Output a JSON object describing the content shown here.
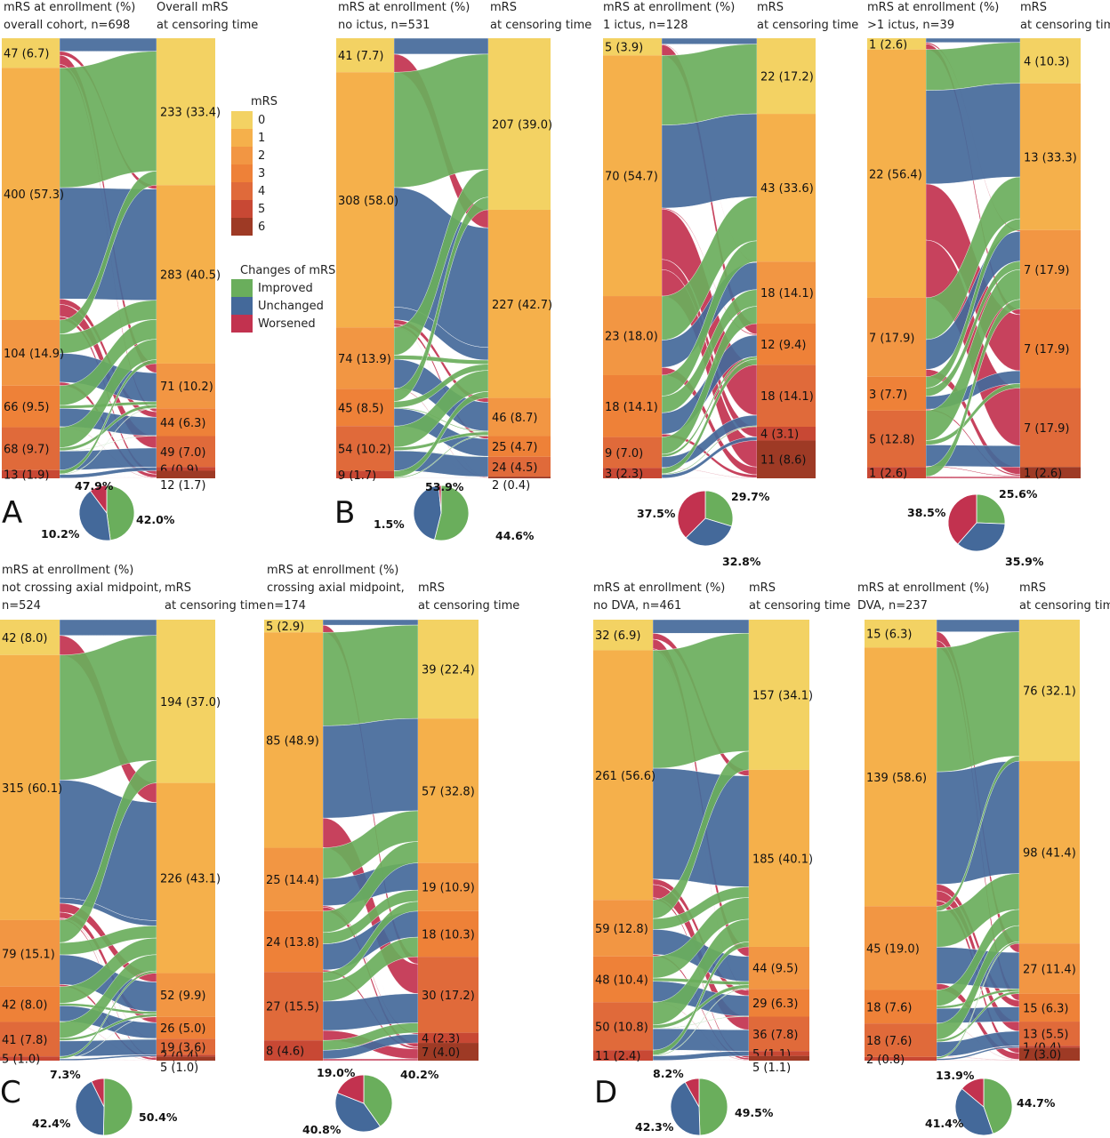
{
  "colors": {
    "mrs": [
      "#F3D263",
      "#F5B04B",
      "#F29643",
      "#EE8138",
      "#E06A3A",
      "#C84834",
      "#9E3A25"
    ],
    "improved": "#6AAE5C",
    "unchanged": "#44699A",
    "worsened": "#C2324F"
  },
  "legend": {
    "mrs_title": "mRS",
    "mrs_levels": [
      "0",
      "1",
      "2",
      "3",
      "4",
      "5",
      "6"
    ],
    "changes_title": "Changes of mRS",
    "changes": [
      "Improved",
      "Unchanged",
      "Worsened"
    ]
  },
  "chart_data": [
    {
      "type": "sankey",
      "panel_letter": "A",
      "header_left": [
        "mRS at enrollment (%)",
        "overall cohort, n=698"
      ],
      "header_right": [
        "Overall mRS",
        "at censoring time"
      ],
      "left": [
        {
          "mrs": 0,
          "label": "47 (6.7)",
          "value": 47
        },
        {
          "mrs": 1,
          "label": "400 (57.3)",
          "value": 400
        },
        {
          "mrs": 2,
          "label": "104 (14.9)",
          "value": 104
        },
        {
          "mrs": 3,
          "label": "66 (9.5)",
          "value": 66
        },
        {
          "mrs": 4,
          "label": "68 (9.7)",
          "value": 68
        },
        {
          "mrs": 5,
          "label": "13 (1.9)",
          "value": 13
        }
      ],
      "right": [
        {
          "mrs": 0,
          "label": "233 (33.4)",
          "value": 233
        },
        {
          "mrs": 1,
          "label": "283 (40.5)",
          "value": 283
        },
        {
          "mrs": 2,
          "label": "71 (10.2)",
          "value": 71
        },
        {
          "mrs": 3,
          "label": "44 (6.3)",
          "value": 44
        },
        {
          "mrs": 4,
          "label": "49 (7.0)",
          "value": 49
        },
        {
          "mrs": 5,
          "label": "6 (0.9)",
          "value": 6
        },
        {
          "mrs": 6,
          "label": "12 (1.7)",
          "value": 12
        }
      ],
      "pie": {
        "improved": 47.9,
        "unchanged": 42.0,
        "worsened": 10.2,
        "labels": {
          "improved": "47.9%",
          "unchanged": "42.0%",
          "worsened": "10.2%"
        }
      }
    },
    {
      "type": "sankey",
      "panel_letter": "B",
      "header_left": [
        "mRS at enrollment (%)",
        "no ictus, n=531"
      ],
      "header_right": [
        "mRS",
        "at censoring time"
      ],
      "left": [
        {
          "mrs": 0,
          "label": "41 (7.7)",
          "value": 41
        },
        {
          "mrs": 1,
          "label": "308 (58.0)",
          "value": 308
        },
        {
          "mrs": 2,
          "label": "74 (13.9)",
          "value": 74
        },
        {
          "mrs": 3,
          "label": "45 (8.5)",
          "value": 45
        },
        {
          "mrs": 4,
          "label": "54 (10.2)",
          "value": 54
        },
        {
          "mrs": 5,
          "label": "9 (1.7)",
          "value": 9
        }
      ],
      "right": [
        {
          "mrs": 0,
          "label": "207 (39.0)",
          "value": 207
        },
        {
          "mrs": 1,
          "label": "227 (42.7)",
          "value": 227
        },
        {
          "mrs": 2,
          "label": "46 (8.7)",
          "value": 46
        },
        {
          "mrs": 3,
          "label": "25 (4.7)",
          "value": 25
        },
        {
          "mrs": 4,
          "label": "24 (4.5)",
          "value": 24
        },
        {
          "mrs": 6,
          "label": "2 (0.4)",
          "value": 2
        }
      ],
      "pie": {
        "improved": 53.9,
        "unchanged": 44.6,
        "worsened": 1.5,
        "labels": {
          "improved": "53.9%",
          "unchanged": "44.6%",
          "worsened": "1.5%"
        }
      }
    },
    {
      "type": "sankey",
      "panel_letter": "",
      "header_left": [
        "mRS at enrollment (%)",
        "1 ictus, n=128"
      ],
      "header_right": [
        "mRS",
        "at censoring time"
      ],
      "left": [
        {
          "mrs": 0,
          "label": "5 (3.9)",
          "value": 5
        },
        {
          "mrs": 1,
          "label": "70 (54.7)",
          "value": 70
        },
        {
          "mrs": 2,
          "label": "23 (18.0)",
          "value": 23
        },
        {
          "mrs": 3,
          "label": "18 (14.1)",
          "value": 18
        },
        {
          "mrs": 4,
          "label": "9 (7.0)",
          "value": 9
        },
        {
          "mrs": 5,
          "label": "3 (2.3)",
          "value": 3
        }
      ],
      "right": [
        {
          "mrs": 0,
          "label": "22 (17.2)",
          "value": 22
        },
        {
          "mrs": 1,
          "label": "43 (33.6)",
          "value": 43
        },
        {
          "mrs": 2,
          "label": "18 (14.1)",
          "value": 18
        },
        {
          "mrs": 3,
          "label": "12 (9.4)",
          "value": 12
        },
        {
          "mrs": 4,
          "label": "18 (14.1)",
          "value": 18
        },
        {
          "mrs": 5,
          "label": "4 (3.1)",
          "value": 4
        },
        {
          "mrs": 6,
          "label": "11 (8.6)",
          "value": 11
        }
      ],
      "pie": {
        "improved": 29.7,
        "unchanged": 32.8,
        "worsened": 37.5,
        "labels": {
          "improved": "29.7%",
          "unchanged": "32.8%",
          "worsened": "37.5%"
        }
      }
    },
    {
      "type": "sankey",
      "panel_letter": "",
      "header_left": [
        "mRS at enrollment (%)",
        ">1 ictus, n=39"
      ],
      "header_right": [
        "mRS",
        "at censoring time"
      ],
      "left": [
        {
          "mrs": 0,
          "label": "1 (2.6)",
          "value": 1
        },
        {
          "mrs": 1,
          "label": "22 (56.4)",
          "value": 22
        },
        {
          "mrs": 2,
          "label": "7 (17.9)",
          "value": 7
        },
        {
          "mrs": 3,
          "label": "3 (7.7)",
          "value": 3
        },
        {
          "mrs": 4,
          "label": "5 (12.8)",
          "value": 5
        },
        {
          "mrs": 5,
          "label": "1 (2.6)",
          "value": 1
        }
      ],
      "right": [
        {
          "mrs": 0,
          "label": "4 (10.3)",
          "value": 4
        },
        {
          "mrs": 1,
          "label": "13 (33.3)",
          "value": 13
        },
        {
          "mrs": 2,
          "label": "7 (17.9)",
          "value": 7
        },
        {
          "mrs": 3,
          "label": "7 (17.9)",
          "value": 7
        },
        {
          "mrs": 4,
          "label": "7 (17.9)",
          "value": 7
        },
        {
          "mrs": 6,
          "label": "1 (2.6)",
          "value": 1
        }
      ],
      "pie": {
        "improved": 25.6,
        "unchanged": 35.9,
        "worsened": 38.5,
        "labels": {
          "improved": "25.6%",
          "unchanged": "35.9%",
          "worsened": "38.5%"
        }
      }
    },
    {
      "type": "sankey",
      "panel_letter": "C",
      "header_left": [
        "mRS at enrollment (%)",
        "not crossing axial midpoint,",
        "n=524"
      ],
      "header_right": [
        "mRS",
        "at censoring time"
      ],
      "left": [
        {
          "mrs": 0,
          "label": "42 (8.0)",
          "value": 42
        },
        {
          "mrs": 1,
          "label": "315 (60.1)",
          "value": 315
        },
        {
          "mrs": 2,
          "label": "79 (15.1)",
          "value": 79
        },
        {
          "mrs": 3,
          "label": "42 (8.0)",
          "value": 42
        },
        {
          "mrs": 4,
          "label": "41 (7.8)",
          "value": 41
        },
        {
          "mrs": 5,
          "label": "5 (1.0)",
          "value": 5
        }
      ],
      "right": [
        {
          "mrs": 0,
          "label": "194 (37.0)",
          "value": 194
        },
        {
          "mrs": 1,
          "label": "226 (43.1)",
          "value": 226
        },
        {
          "mrs": 2,
          "label": "52 (9.9)",
          "value": 52
        },
        {
          "mrs": 3,
          "label": "26 (5.0)",
          "value": 26
        },
        {
          "mrs": 4,
          "label": "19 (3.6)",
          "value": 19
        },
        {
          "mrs": 5,
          "label": "2 (0.4)",
          "value": 2
        },
        {
          "mrs": 6,
          "label": "5 (1.0)",
          "value": 5
        }
      ],
      "pie": {
        "improved": 50.4,
        "unchanged": 42.4,
        "worsened": 7.3,
        "labels": {
          "improved": "50.4%",
          "unchanged": "42.4%",
          "worsened": "7.3%"
        }
      }
    },
    {
      "type": "sankey",
      "panel_letter": "",
      "header_left": [
        "mRS at enrollment (%)",
        "crossing axial midpoint,",
        "n=174"
      ],
      "header_right": [
        "mRS",
        "at censoring time"
      ],
      "left": [
        {
          "mrs": 0,
          "label": "5 (2.9)",
          "value": 5
        },
        {
          "mrs": 1,
          "label": "85 (48.9)",
          "value": 85
        },
        {
          "mrs": 2,
          "label": "25 (14.4)",
          "value": 25
        },
        {
          "mrs": 3,
          "label": "24 (13.8)",
          "value": 24
        },
        {
          "mrs": 4,
          "label": "27 (15.5)",
          "value": 27
        },
        {
          "mrs": 5,
          "label": "8 (4.6)",
          "value": 8
        }
      ],
      "right": [
        {
          "mrs": 0,
          "label": "39 (22.4)",
          "value": 39
        },
        {
          "mrs": 1,
          "label": "57 (32.8)",
          "value": 57
        },
        {
          "mrs": 2,
          "label": "19 (10.9)",
          "value": 19
        },
        {
          "mrs": 3,
          "label": "18 (10.3)",
          "value": 18
        },
        {
          "mrs": 4,
          "label": "30 (17.2)",
          "value": 30
        },
        {
          "mrs": 5,
          "label": "4 (2.3)",
          "value": 4
        },
        {
          "mrs": 6,
          "label": "7 (4.0)",
          "value": 7
        }
      ],
      "pie": {
        "improved": 40.2,
        "unchanged": 40.8,
        "worsened": 19.0,
        "labels": {
          "improved": "40.2%",
          "unchanged": "40.8%",
          "worsened": "19.0%"
        }
      }
    },
    {
      "type": "sankey",
      "panel_letter": "D",
      "header_left": [
        "mRS at enrollment (%)",
        "no DVA, n=461"
      ],
      "header_right": [
        "mRS",
        "at censoring time"
      ],
      "left": [
        {
          "mrs": 0,
          "label": "32 (6.9)",
          "value": 32
        },
        {
          "mrs": 1,
          "label": "261 (56.6)",
          "value": 261
        },
        {
          "mrs": 2,
          "label": "59 (12.8)",
          "value": 59
        },
        {
          "mrs": 3,
          "label": "48 (10.4)",
          "value": 48
        },
        {
          "mrs": 4,
          "label": "50 (10.8)",
          "value": 50
        },
        {
          "mrs": 5,
          "label": "11 (2.4)",
          "value": 11
        }
      ],
      "right": [
        {
          "mrs": 0,
          "label": "157 (34.1)",
          "value": 157
        },
        {
          "mrs": 1,
          "label": "185 (40.1)",
          "value": 185
        },
        {
          "mrs": 2,
          "label": "44 (9.5)",
          "value": 44
        },
        {
          "mrs": 3,
          "label": "29 (6.3)",
          "value": 29
        },
        {
          "mrs": 4,
          "label": "36 (7.8)",
          "value": 36
        },
        {
          "mrs": 5,
          "label": "5 (1.1)",
          "value": 5
        },
        {
          "mrs": 6,
          "label": "5 (1.1)",
          "value": 5
        }
      ],
      "pie": {
        "improved": 49.5,
        "unchanged": 42.3,
        "worsened": 8.2,
        "labels": {
          "improved": "49.5%",
          "unchanged": "42.3%",
          "worsened": "8.2%"
        }
      }
    },
    {
      "type": "sankey",
      "panel_letter": "",
      "header_left": [
        "mRS at enrollment (%)",
        "DVA, n=237"
      ],
      "header_right": [
        "mRS",
        "at censoring time"
      ],
      "left": [
        {
          "mrs": 0,
          "label": "15 (6.3)",
          "value": 15
        },
        {
          "mrs": 1,
          "label": "139 (58.6)",
          "value": 139
        },
        {
          "mrs": 2,
          "label": "45 (19.0)",
          "value": 45
        },
        {
          "mrs": 3,
          "label": "18 (7.6)",
          "value": 18
        },
        {
          "mrs": 4,
          "label": "18 (7.6)",
          "value": 18
        },
        {
          "mrs": 5,
          "label": "2 (0.8)",
          "value": 2
        }
      ],
      "right": [
        {
          "mrs": 0,
          "label": "76 (32.1)",
          "value": 76
        },
        {
          "mrs": 1,
          "label": "98 (41.4)",
          "value": 98
        },
        {
          "mrs": 2,
          "label": "27 (11.4)",
          "value": 27
        },
        {
          "mrs": 3,
          "label": "15 (6.3)",
          "value": 15
        },
        {
          "mrs": 4,
          "label": "13 (5.5)",
          "value": 13
        },
        {
          "mrs": 5,
          "label": "1 (0.4)",
          "value": 1
        },
        {
          "mrs": 6,
          "label": "7 (3.0)",
          "value": 7
        }
      ],
      "pie": {
        "improved": 44.7,
        "unchanged": 41.4,
        "worsened": 13.9,
        "labels": {
          "improved": "44.7%",
          "unchanged": "41.4%",
          "worsened": "13.9%"
        }
      }
    }
  ]
}
